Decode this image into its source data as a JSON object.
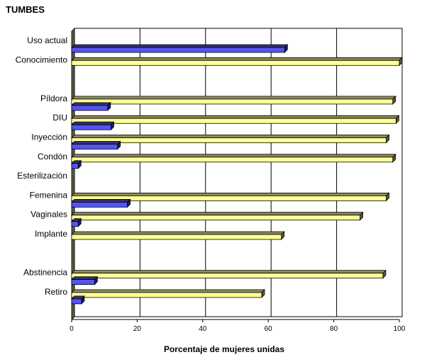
{
  "chart_data": {
    "type": "bar",
    "orientation": "horizontal",
    "title": "TUMBES",
    "xlabel": "Porcentaje de mujeres unidas",
    "ylabel": "",
    "xlim": [
      0,
      100
    ],
    "x_ticks": [
      0,
      20,
      40,
      60,
      80,
      100
    ],
    "grid": true,
    "style": "3d",
    "categories": [
      "Uso actual",
      "Conocimiento",
      "",
      "Píldora",
      "DIU",
      "Inyección",
      "Condón",
      "Esterilización",
      "Femenina",
      "Vaginales",
      "Implante",
      "",
      "Abstinencia",
      "Retiro"
    ],
    "series": [
      {
        "color": "#ffff99",
        "values": [
          null,
          100,
          null,
          98,
          99,
          96,
          98,
          null,
          96,
          88,
          64,
          null,
          95,
          58
        ]
      },
      {
        "color": "#5555ee",
        "values": [
          65,
          null,
          null,
          11,
          12,
          14,
          2,
          null,
          17,
          2,
          null,
          null,
          7,
          3
        ]
      }
    ],
    "colors": {
      "yellow_bar": "#ffff99",
      "blue_bar": "#5555ee",
      "wall": "#5a5a44",
      "grid": "#000000"
    }
  }
}
